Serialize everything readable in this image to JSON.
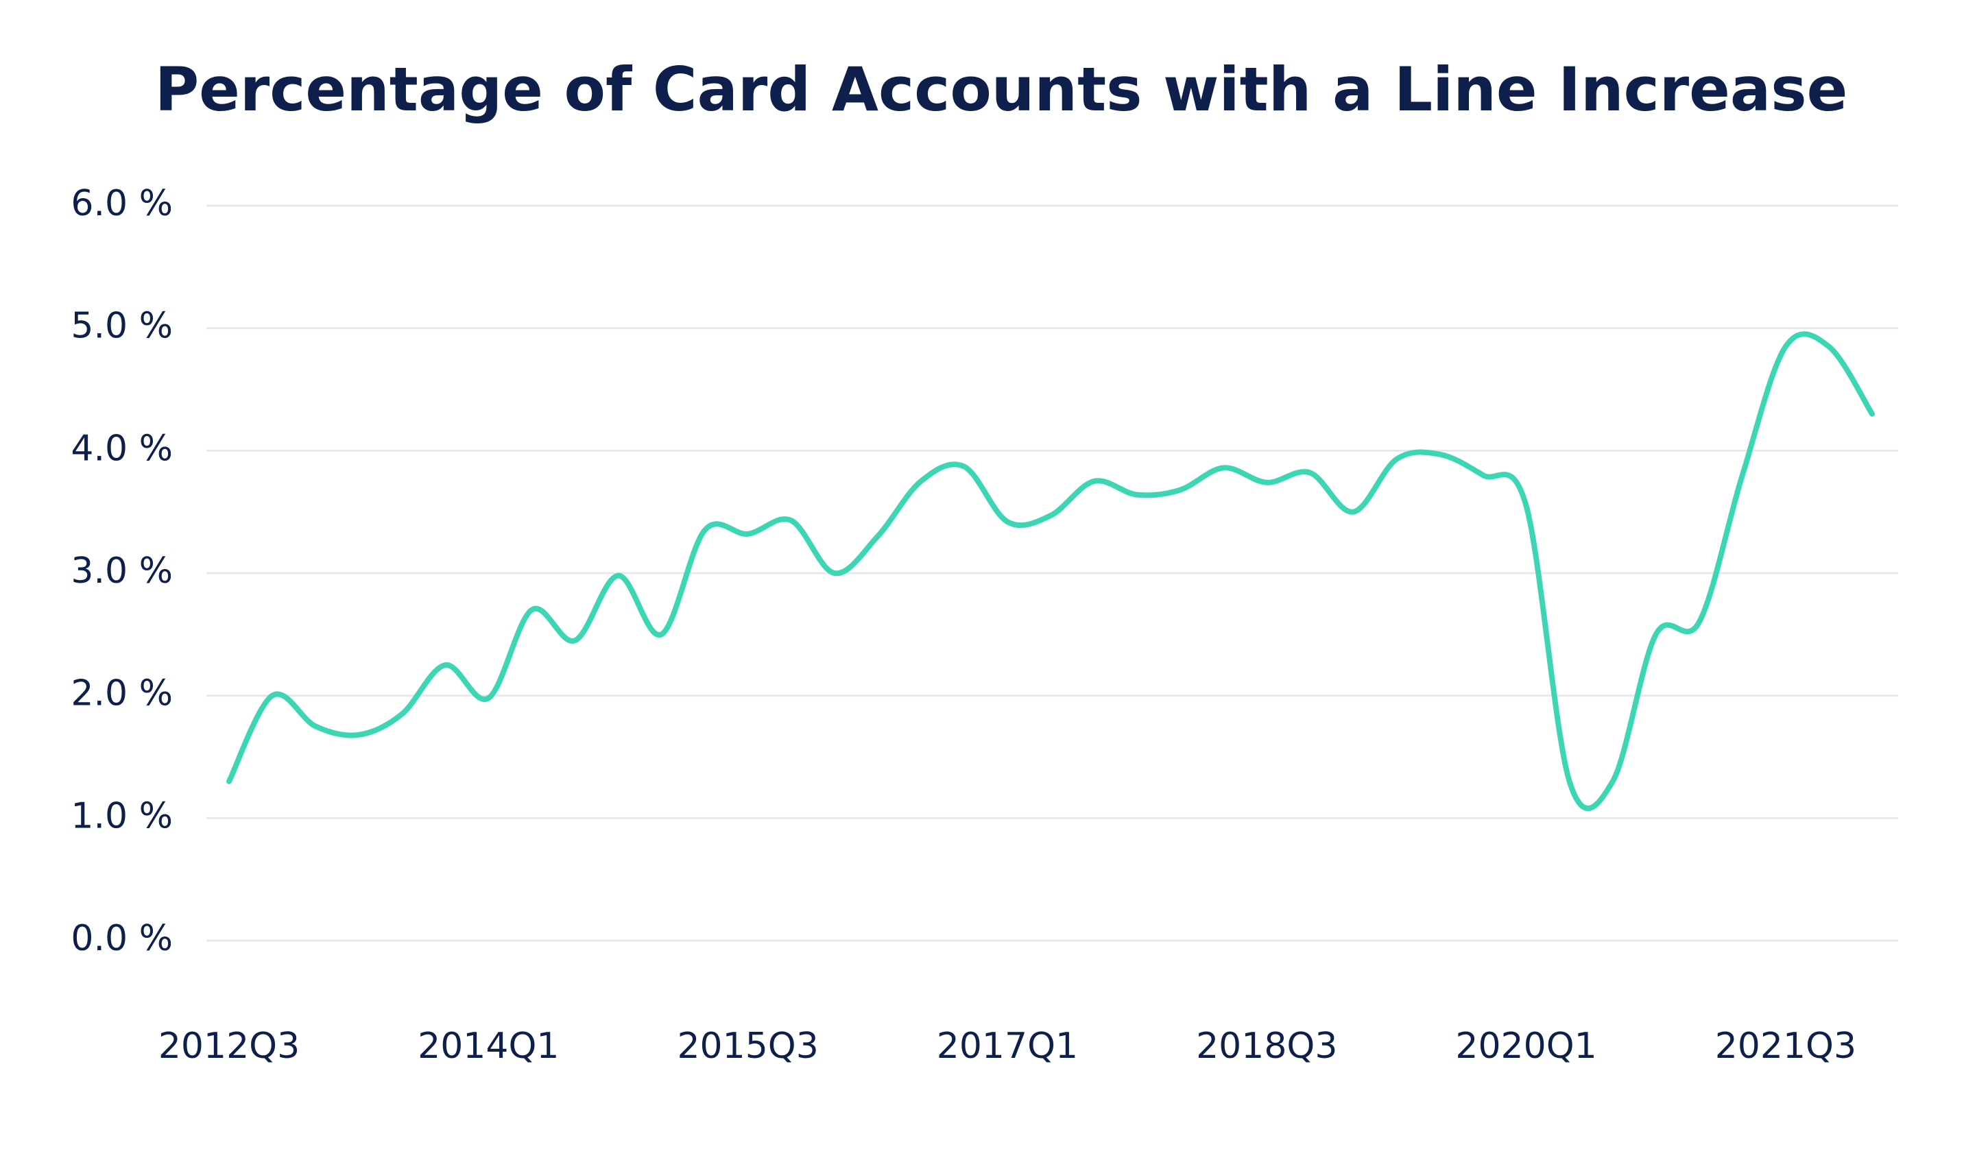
{
  "chart_data": {
    "type": "line",
    "title": "Percentage of Card Accounts with a Line Increase",
    "categories": [
      "2012Q3",
      null,
      null,
      null,
      null,
      null,
      "2014Q1",
      null,
      null,
      null,
      null,
      null,
      "2015Q3",
      null,
      null,
      null,
      null,
      null,
      "2017Q1",
      null,
      null,
      null,
      null,
      null,
      "2018Q3",
      null,
      null,
      null,
      null,
      null,
      "2020Q1",
      null,
      null,
      null,
      null,
      null,
      "2021Q3",
      null,
      null
    ],
    "series": [
      {
        "name": "Percentage of card accounts with a line increase",
        "color": "#3dd6b5",
        "values": [
          1.3,
          2.0,
          1.75,
          1.68,
          1.85,
          2.25,
          1.98,
          2.7,
          2.45,
          2.98,
          2.5,
          3.35,
          3.32,
          3.43,
          3.0,
          3.3,
          3.75,
          3.87,
          3.42,
          3.47,
          3.75,
          3.64,
          3.68,
          3.86,
          3.74,
          3.82,
          3.5,
          3.93,
          3.97,
          3.8,
          3.55,
          1.3,
          1.3,
          2.5,
          2.6,
          3.8,
          4.85,
          4.85,
          4.3
        ]
      }
    ],
    "ylim": [
      0,
      6
    ],
    "yticks": [
      {
        "value": 0,
        "label": "0.0 %"
      },
      {
        "value": 1,
        "label": "1.0 %"
      },
      {
        "value": 2,
        "label": "2.0 %"
      },
      {
        "value": 3,
        "label": "3.0 %"
      },
      {
        "value": 4,
        "label": "4.0 %"
      },
      {
        "value": 5,
        "label": "5.0 %"
      },
      {
        "value": 6,
        "label": "6.0 %"
      }
    ],
    "grid": true
  }
}
